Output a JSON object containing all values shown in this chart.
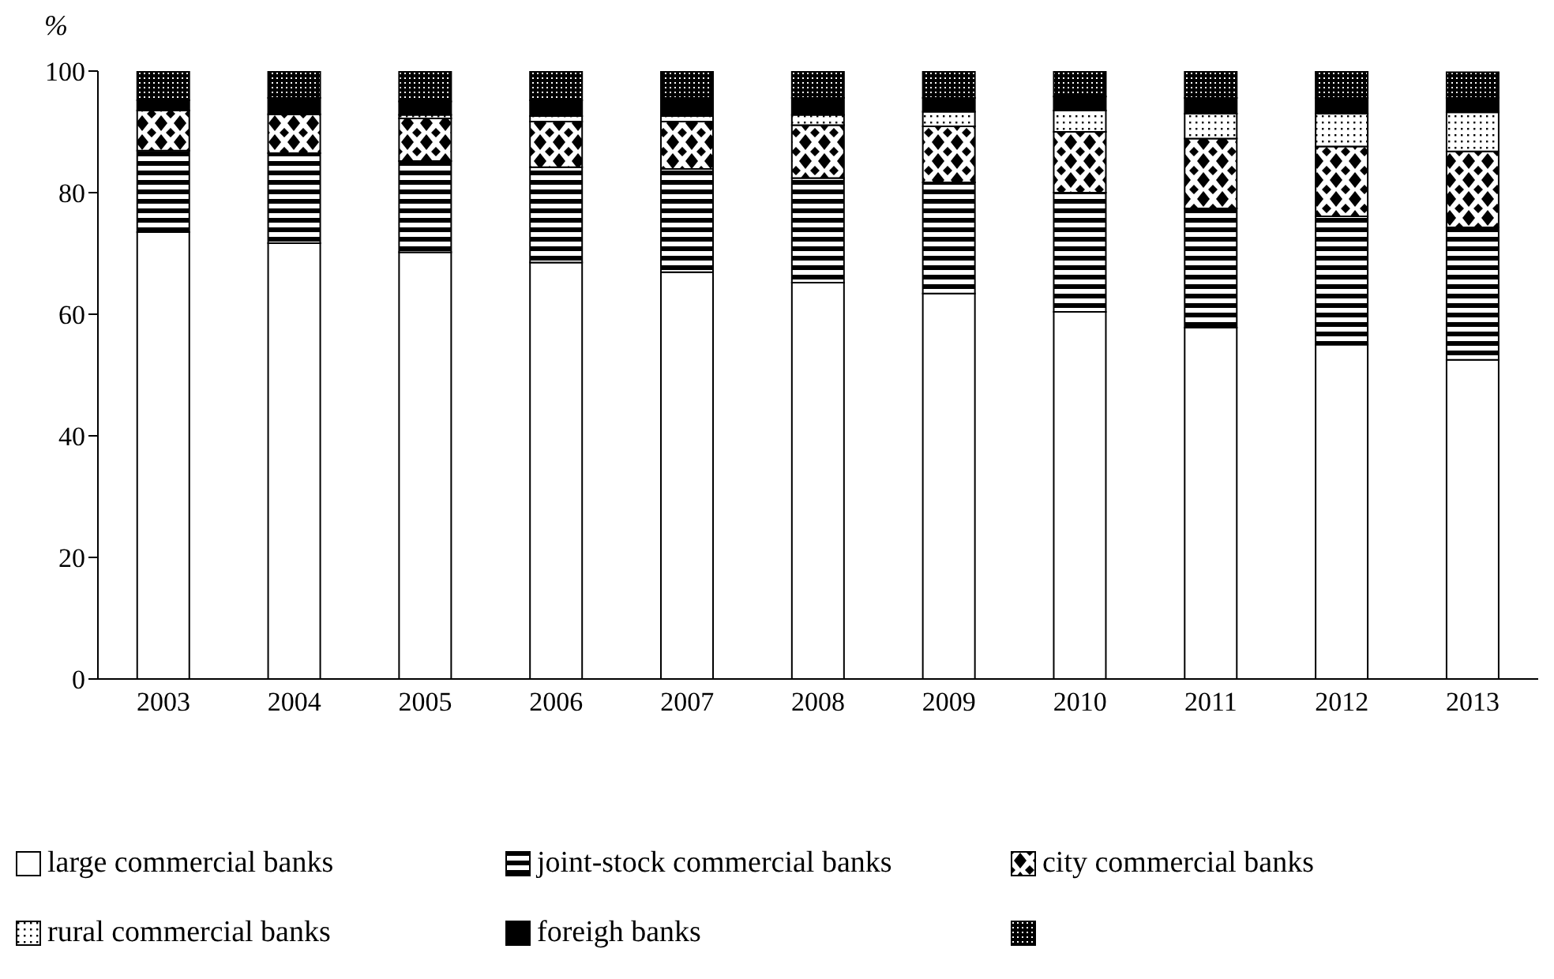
{
  "chart_data": {
    "type": "bar",
    "stacked": true,
    "ylabel": "%",
    "categories": [
      "2003",
      "2004",
      "2005",
      "2006",
      "2007",
      "2008",
      "2009",
      "2010",
      "2011",
      "2012",
      "2013"
    ],
    "series": [
      {
        "name": "large commercial banks",
        "color": "#000000",
        "values": [
          73.5,
          71.7,
          70.2,
          68.5,
          66.9,
          65.2,
          63.4,
          60.4,
          57.8,
          55.0,
          52.5
        ]
      },
      {
        "name": "joint-stock commercial banks",
        "color": "#000000",
        "values": [
          13.4,
          14.8,
          15.0,
          15.7,
          17.0,
          17.2,
          18.3,
          19.6,
          19.6,
          21.1,
          21.8
        ]
      },
      {
        "name": "city commercial banks",
        "color": "#000000",
        "values": [
          6.6,
          6.4,
          7.0,
          7.5,
          7.8,
          8.7,
          9.2,
          10.0,
          11.5,
          11.5,
          12.5
        ]
      },
      {
        "name": "rural commercial banks",
        "color": "#000000",
        "values": [
          0,
          0,
          0.6,
          0.9,
          0.9,
          1.7,
          2.4,
          3.5,
          4.1,
          5.4,
          6.4
        ]
      },
      {
        "name": "foreigh banks",
        "color": "#000000",
        "values": [
          1.7,
          2.7,
          2.2,
          2.6,
          3.0,
          2.8,
          2.3,
          2.3,
          2.6,
          2.6,
          2.4
        ]
      },
      {
        "color": "#000000",
        "values": [
          4.8,
          4.4,
          5.0,
          4.8,
          4.4,
          4.4,
          4.4,
          4.2,
          4.4,
          4.4,
          4.2
        ]
      }
    ],
    "ylim": [
      0,
      100
    ],
    "yticks": [
      0,
      20,
      40,
      60,
      80,
      100
    ],
    "legend": "bottom"
  }
}
